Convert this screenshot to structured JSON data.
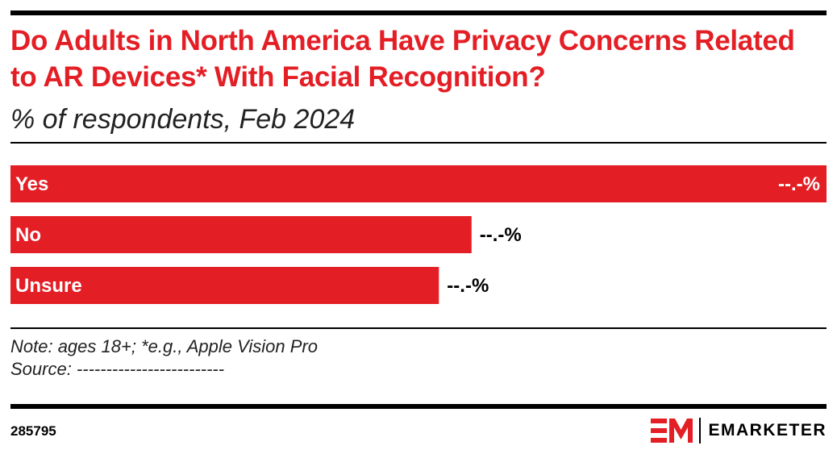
{
  "title": "Do Adults in North America Have Privacy Concerns Related to AR Devices* With Facial Recognition?",
  "subtitle": "% of respondents, Feb 2024",
  "note": "Note: ages 18+; *e.g., Apple Vision Pro",
  "source": "Source: -------------------------",
  "chart_id": "285795",
  "brand": {
    "name": "EMARKETER",
    "logo_icon": "em-logo-icon",
    "accent_color": "#e41e25"
  },
  "chart_data": {
    "type": "bar",
    "orientation": "horizontal",
    "categories": [
      "Yes",
      "No",
      "Unsure"
    ],
    "values": [
      100,
      56.5,
      52.5
    ],
    "value_labels": [
      "--.-%",
      "--.-%",
      "--.-%"
    ],
    "xlim": [
      0,
      100
    ],
    "grid": false,
    "legend": "none",
    "bar_color": "#e41e25"
  }
}
